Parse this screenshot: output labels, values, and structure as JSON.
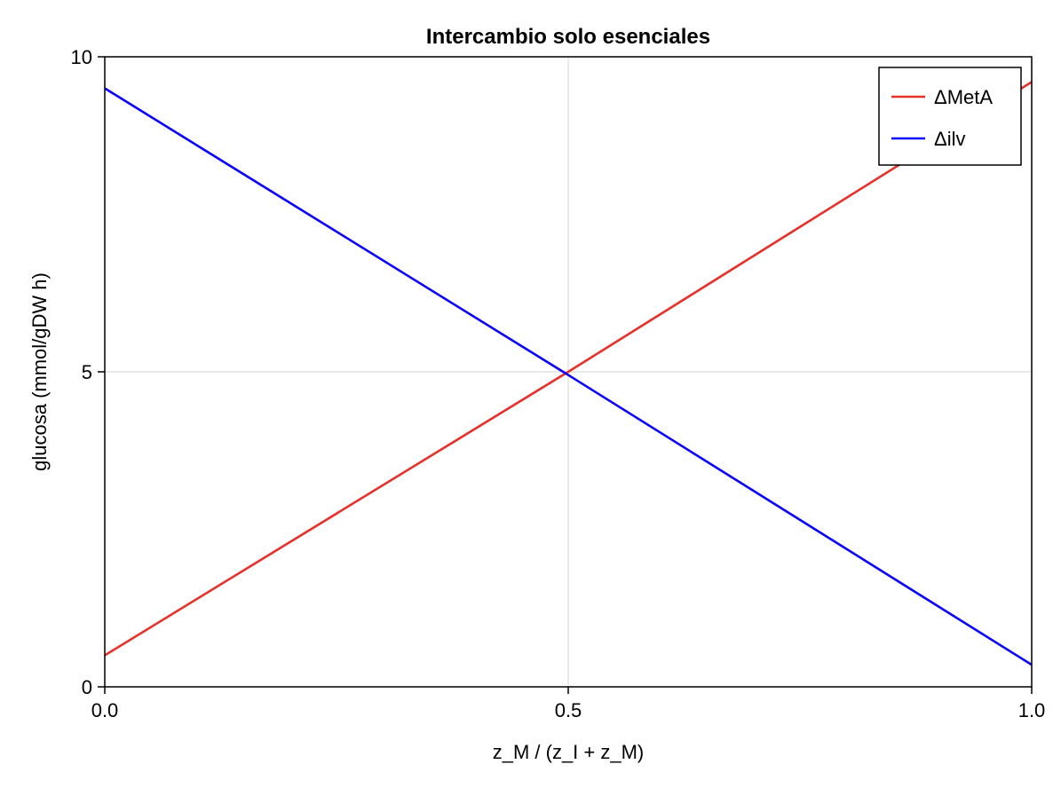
{
  "chart_data": {
    "type": "line",
    "title": "Intercambio solo esenciales",
    "xlabel": "z_M / (z_I + z_M)",
    "ylabel": "glucosa (mmol/gDW h)",
    "xlim": [
      0.0,
      1.0
    ],
    "ylim": [
      0,
      10
    ],
    "xticks": [
      0.0,
      0.5,
      1.0
    ],
    "xtick_labels": [
      "0.0",
      "0.5",
      "1.0"
    ],
    "yticks": [
      0,
      5,
      10
    ],
    "ytick_labels": [
      "0",
      "5",
      "10"
    ],
    "grid": true,
    "legend_position": "top-right",
    "series": [
      {
        "name": "ΔMetA",
        "color": "#e8302a",
        "x": [
          0.0,
          0.5,
          1.0
        ],
        "y": [
          0.5,
          5.0,
          9.6
        ]
      },
      {
        "name": "Δilv",
        "color": "#0a00ff",
        "x": [
          0.0,
          0.5,
          1.0
        ],
        "y": [
          9.5,
          4.95,
          0.35
        ]
      }
    ]
  }
}
